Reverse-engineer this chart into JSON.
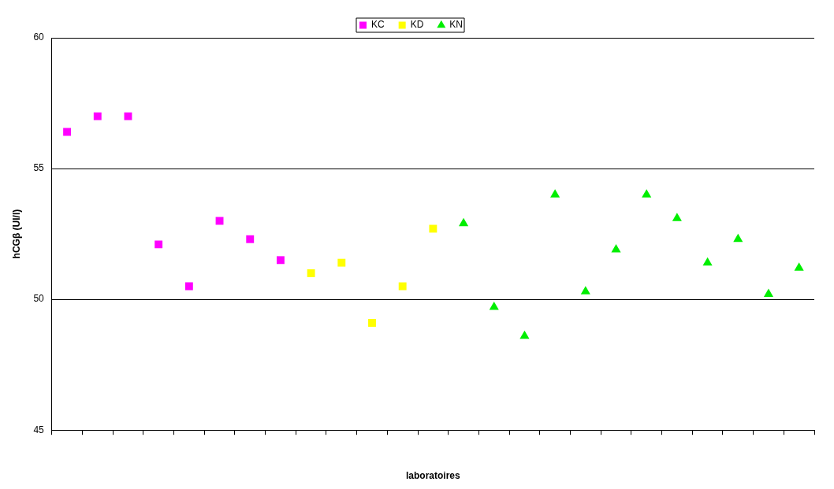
{
  "chart_data": {
    "type": "scatter",
    "xlabel": "laboratoires",
    "ylabel": "hCGβ (UI/l)",
    "categories": [
      null,
      null,
      null,
      null,
      null,
      null,
      null,
      null,
      null,
      null,
      null,
      null,
      null,
      null,
      null,
      null,
      null,
      null,
      null,
      null,
      null,
      null,
      null,
      null,
      null
    ],
    "series": [
      {
        "name": "KC",
        "color": "#ff00ff",
        "marker": "square",
        "values": [
          56.4,
          57.0,
          57.0,
          52.1,
          50.5,
          53.0,
          52.3,
          51.5,
          null,
          null,
          null,
          null,
          null,
          null,
          null,
          null,
          null,
          null,
          null,
          null,
          null,
          null,
          null,
          null,
          null
        ]
      },
      {
        "name": "KD",
        "color": "#ffff00",
        "marker": "square",
        "values": [
          null,
          null,
          null,
          null,
          null,
          null,
          null,
          null,
          51.0,
          51.4,
          49.1,
          50.5,
          52.7,
          null,
          null,
          null,
          null,
          null,
          null,
          null,
          null,
          null,
          null,
          null,
          null
        ]
      },
      {
        "name": "KN",
        "color": "#00ee00",
        "marker": "triangle",
        "values": [
          null,
          null,
          null,
          null,
          null,
          null,
          null,
          null,
          null,
          null,
          null,
          null,
          null,
          52.9,
          49.7,
          48.6,
          54.0,
          50.3,
          51.9,
          54.0,
          53.1,
          51.4,
          52.3,
          50.2,
          51.2
        ]
      }
    ],
    "ylim": [
      45,
      60
    ],
    "yticks": [
      45,
      50,
      55,
      60
    ],
    "grid": "y",
    "legend": "top",
    "tick_labels": "y"
  }
}
